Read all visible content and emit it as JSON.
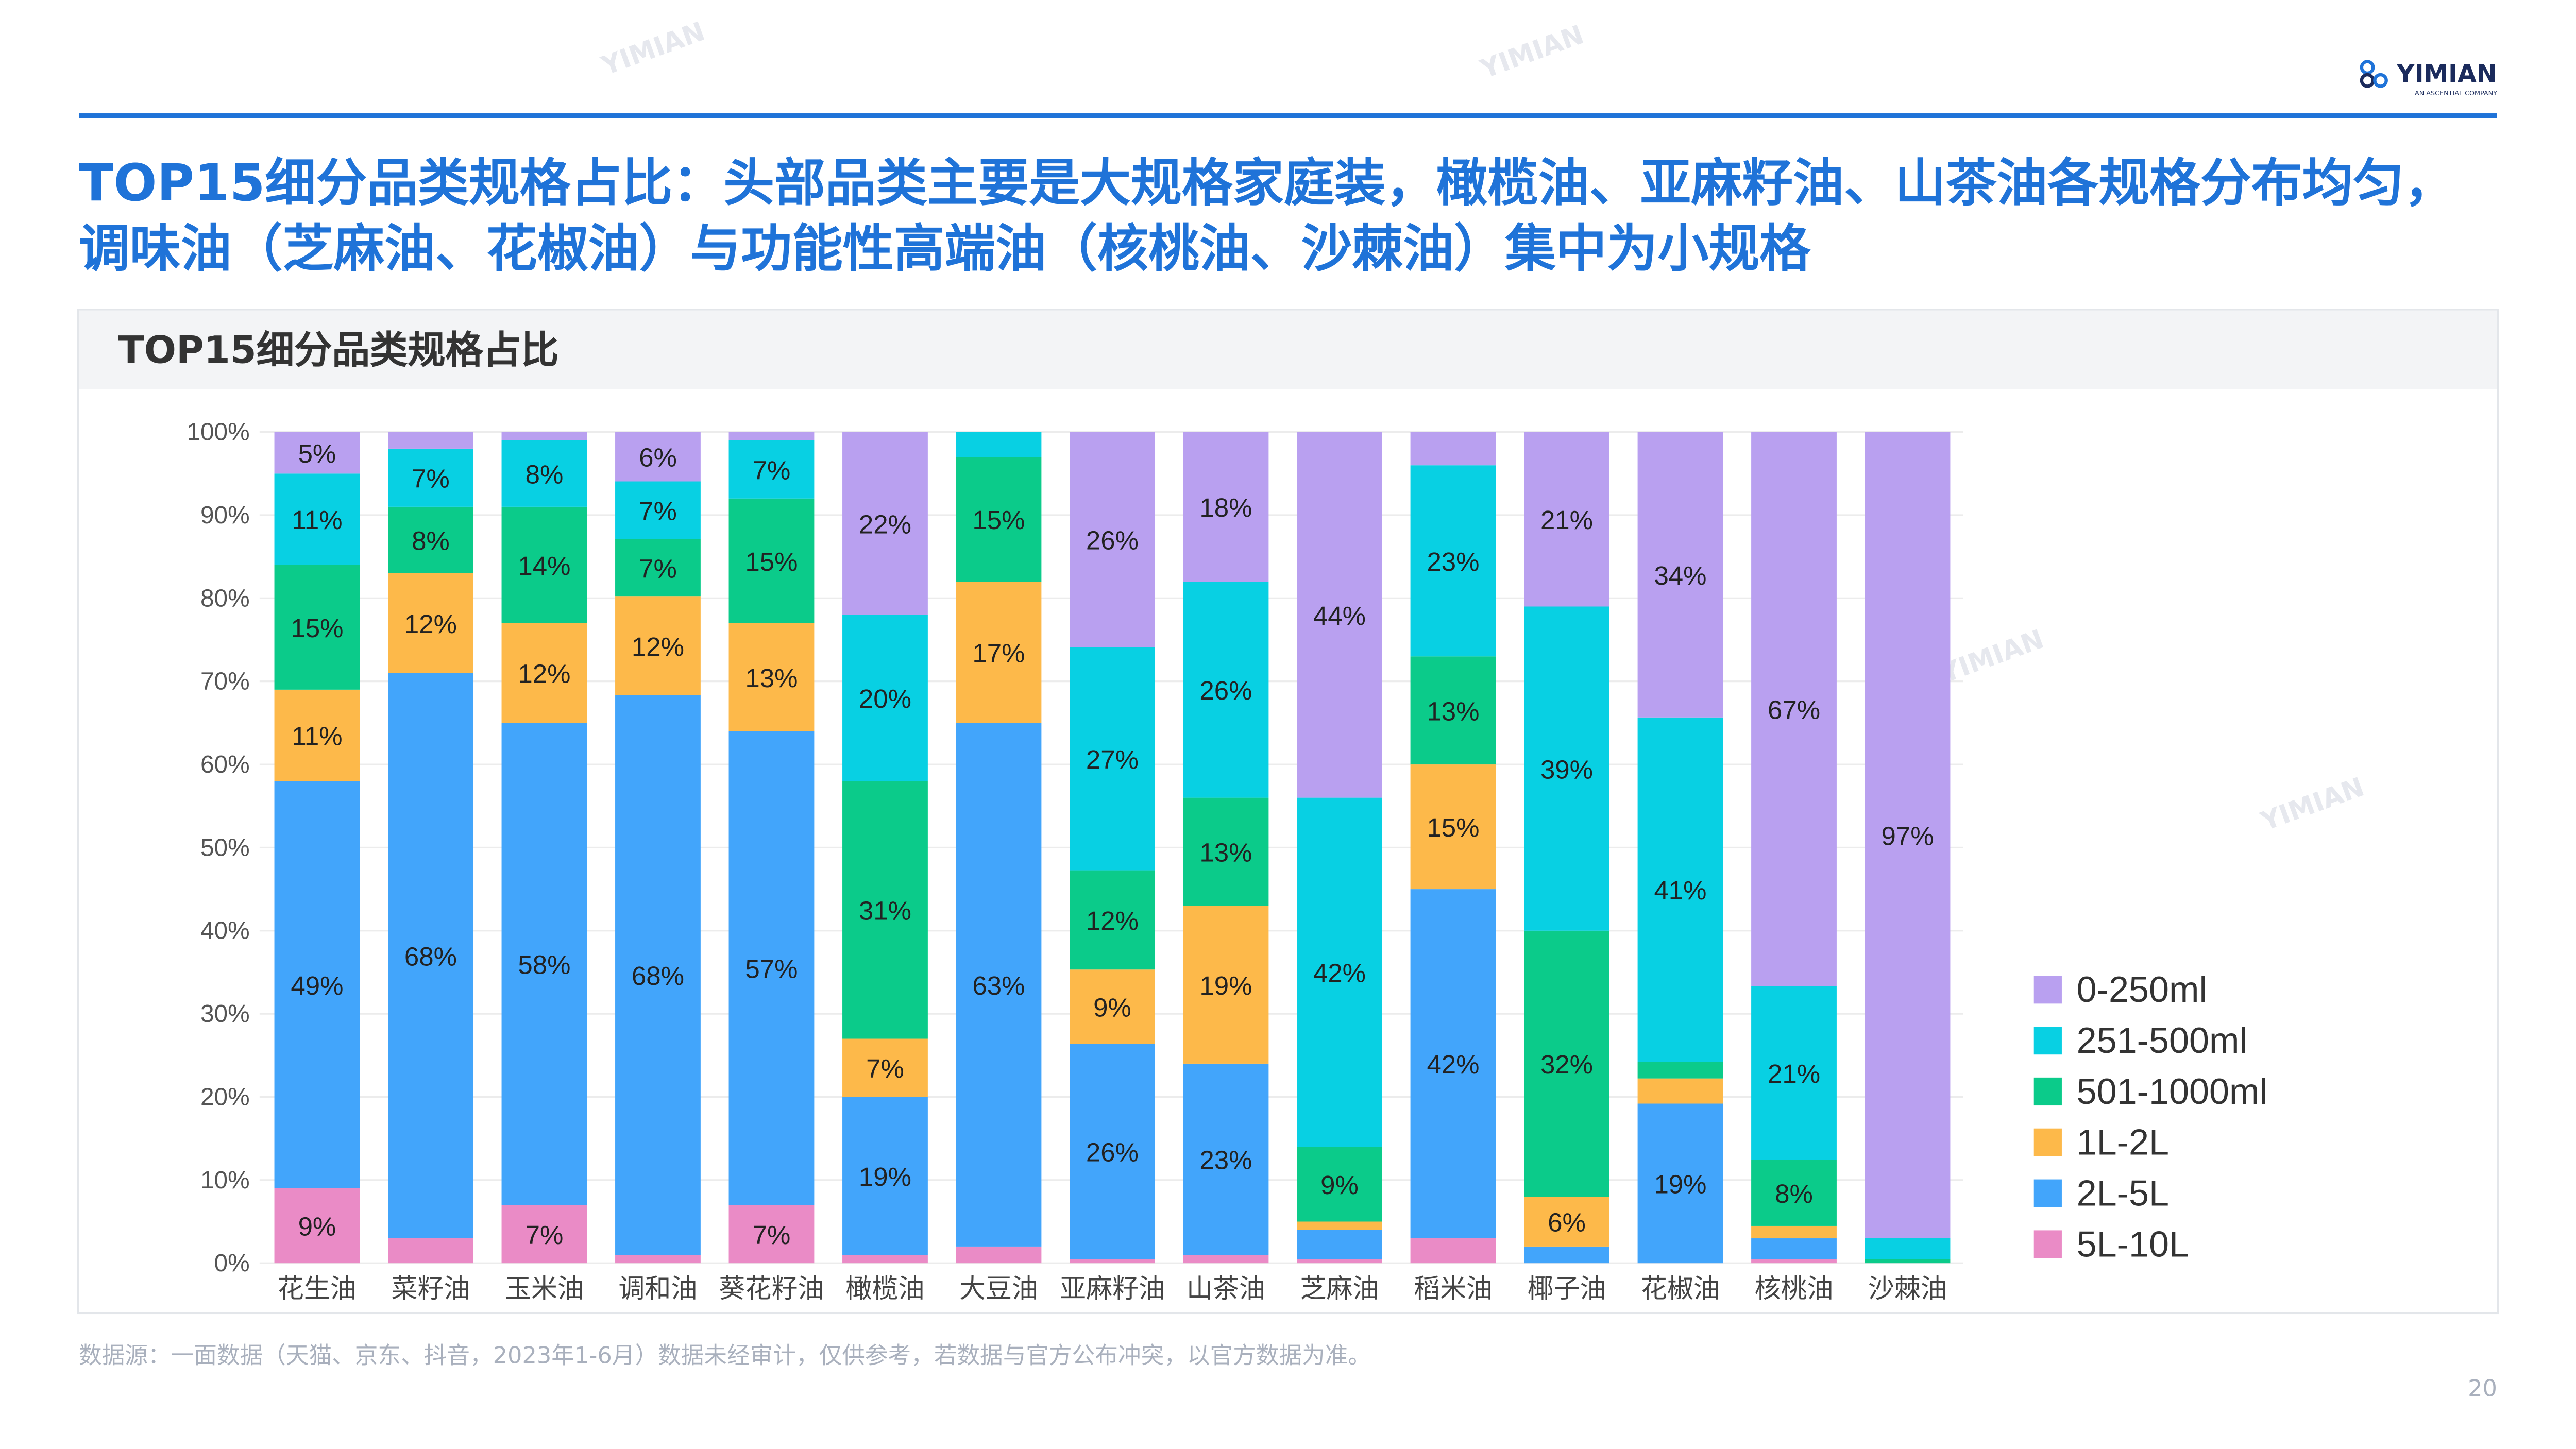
{
  "brand": "YIMIAN",
  "brand_sub": "AN ASCENTIAL COMPANY",
  "title": "TOP15细分品类规格占比：头部品类主要是大规格家庭装，橄榄油、亚麻籽油、山茶油各规格分布均匀，调味油（芝麻油、花椒油）与功能性高端油（核桃油、沙棘油）集中为小规格",
  "source": "数据源：一面数据（天猫、京东、抖音，2023年1-6月）数据未经审计，仅供参考，若数据与官方公布冲突，以官方数据为准。",
  "page_number": "20",
  "chart_data": {
    "type": "bar",
    "stacked": true,
    "title": "TOP15细分品类规格占比",
    "xlabel": "",
    "ylabel": "",
    "ylim": [
      0,
      100
    ],
    "yticks": [
      "0%",
      "10%",
      "20%",
      "30%",
      "40%",
      "50%",
      "60%",
      "70%",
      "80%",
      "90%",
      "100%"
    ],
    "legend_position": "right",
    "categories": [
      "花生油",
      "菜籽油",
      "玉米油",
      "调和油",
      "葵花籽油",
      "橄榄油",
      "大豆油",
      "亚麻籽油",
      "山茶油",
      "芝麻油",
      "稻米油",
      "椰子油",
      "花椒油",
      "核桃油",
      "沙棘油"
    ],
    "series": [
      {
        "name": "5L-10L",
        "color": "#ea8bc6",
        "values": [
          9,
          3,
          7,
          1,
          7,
          1,
          2,
          0.5,
          1,
          0.5,
          3,
          0,
          0,
          0.5,
          0
        ]
      },
      {
        "name": "2L-5L",
        "color": "#42a5fb",
        "values": [
          49,
          68,
          58,
          68,
          57,
          19,
          63,
          26,
          23,
          3.5,
          42,
          2,
          19,
          2.5,
          0
        ]
      },
      {
        "name": "1L-2L",
        "color": "#fdb94a",
        "values": [
          11,
          12,
          12,
          12,
          13,
          7,
          17,
          9,
          19,
          1,
          15,
          6,
          3,
          1.5,
          0
        ]
      },
      {
        "name": "501-1000ml",
        "color": "#0bcb8a",
        "values": [
          15,
          8,
          14,
          7,
          15,
          31,
          15,
          12,
          13,
          9,
          13,
          32,
          2,
          8,
          0.5
        ]
      },
      {
        "name": "251-500ml",
        "color": "#08d0e3",
        "values": [
          11,
          7,
          8,
          7,
          7,
          20,
          3,
          27,
          26,
          42,
          23,
          39,
          41,
          21,
          2.5
        ]
      },
      {
        "name": "0-250ml",
        "color": "#b9a0f0",
        "values": [
          5,
          2,
          1,
          6,
          1,
          22,
          0,
          26,
          18,
          44,
          4,
          21,
          34,
          67,
          97
        ]
      }
    ]
  }
}
